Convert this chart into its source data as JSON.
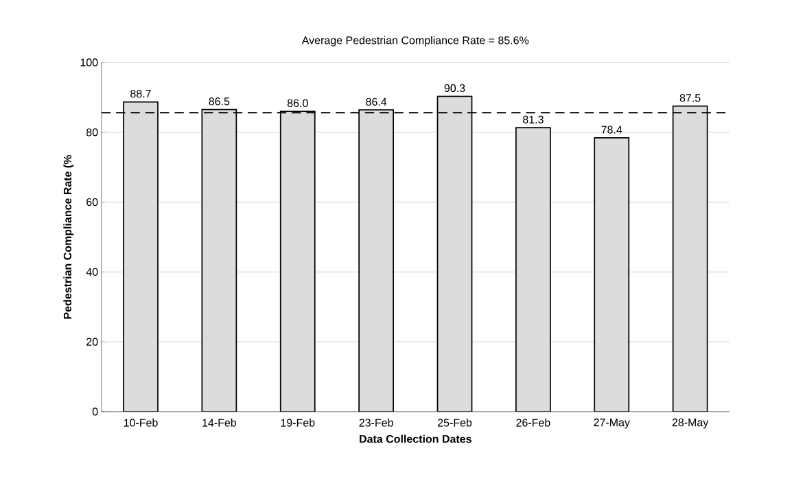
{
  "chart_data": {
    "type": "bar",
    "title": "Average Pedestrian Compliance Rate = 85.6%",
    "xlabel": "Data Collection Dates",
    "ylabel": "Pedestrian Compliance Rate (%",
    "categories": [
      "10-Feb",
      "14-Feb",
      "19-Feb",
      "23-Feb",
      "25-Feb",
      "26-Feb",
      "27-May",
      "28-May"
    ],
    "values": [
      88.7,
      86.5,
      86.0,
      86.4,
      90.3,
      81.3,
      78.4,
      87.5
    ],
    "color": "#dcdcdc",
    "value_labels": [
      "88.7",
      "86.5",
      "86.0",
      "86.4",
      "90.3",
      "81.3",
      "78.4",
      "87.5"
    ],
    "ylim": [
      0,
      100
    ],
    "yticks": [
      0,
      20,
      40,
      60,
      80,
      100
    ],
    "grid": "y",
    "ref_lines": [
      {
        "axis": "y",
        "value": 85.6,
        "color": "#000000",
        "line_style": "dashed"
      }
    ]
  }
}
